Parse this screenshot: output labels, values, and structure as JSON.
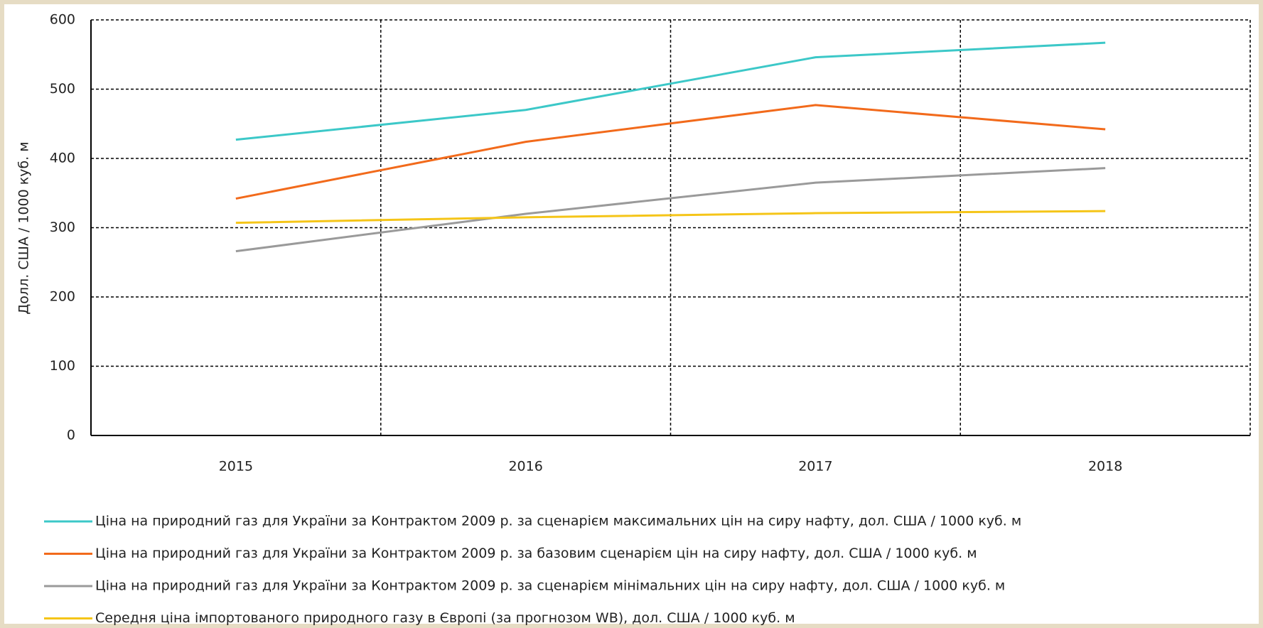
{
  "chart_data": {
    "type": "line",
    "y_label": "Долл. США / 1000 куб. м",
    "categories": [
      "2015",
      "2016",
      "2017",
      "2018"
    ],
    "series": [
      {
        "name": "Ціна на природний газ для України за Контрактом 2009 р. за сценарієм максимальних цін на сиру нафту, дол. США / 1000 куб. м",
        "color": "#3cc8c8",
        "values": [
          427,
          470,
          546,
          567
        ]
      },
      {
        "name": "Ціна на природний газ для України за Контрактом 2009 р. за базовим сценарієм цін на сиру нафту, дол. США / 1000 куб. м",
        "color": "#f26a1b",
        "values": [
          342,
          424,
          477,
          442
        ]
      },
      {
        "name": "Ціна на природний газ для України за Контрактом 2009 р. за сценарієм мінімальних цін на сиру нафту, дол. США / 1000 куб. м",
        "color": "#9a9a9a",
        "values": [
          266,
          320,
          365,
          386
        ]
      },
      {
        "name": "Середня ціна імпортованого природного газу в Європі (за прогнозом WB), дол. США / 1000 куб. м",
        "color": "#f5c518",
        "values": [
          307,
          315,
          321,
          324
        ]
      }
    ],
    "ylim": [
      0,
      600
    ],
    "yticks": [
      0,
      100,
      200,
      300,
      400,
      500,
      600
    ],
    "grid": true
  }
}
